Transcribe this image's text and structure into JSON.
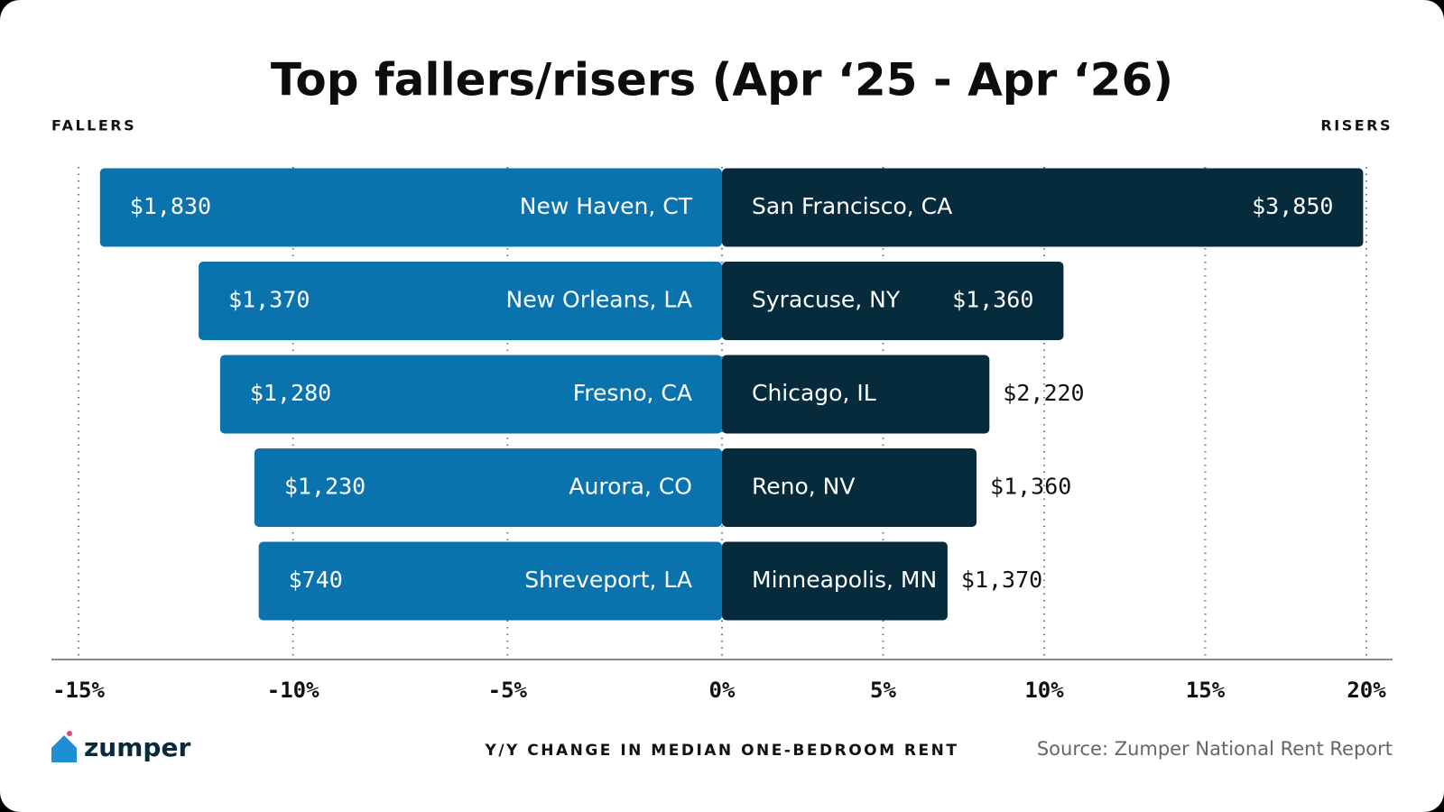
{
  "chart_data": {
    "type": "diverging-bar",
    "title": "Top fallers/risers (Apr ‘25 - Apr ‘26)",
    "x_label": "Y/Y CHANGE IN MEDIAN ONE-BEDROOM RENT",
    "source": "Source: Zumper National Rent Report",
    "logo": "zumper",
    "series": [
      {
        "name": "FALLERS",
        "color": "#0a73ae",
        "cities": [
          "New Haven, CT",
          "New Orleans, LA",
          "Fresno, CA",
          "Aurora, CO",
          "Shreveport, LA"
        ],
        "rents": [
          "$1,830",
          "$1,370",
          "$1,280",
          "$1,230",
          "$740"
        ],
        "values": [
          -14.5,
          -12.2,
          -11.7,
          -10.9,
          -10.8
        ]
      },
      {
        "name": "RISERS",
        "color": "#062b3c",
        "cities": [
          "San Francisco, CA",
          "Syracuse, NY",
          "Chicago, IL",
          "Reno, NV",
          "Minneapolis, MN"
        ],
        "rents": [
          "$3,850",
          "$1,360",
          "$2,220",
          "$1,360",
          "$1,370"
        ],
        "values": [
          19.9,
          10.6,
          8.3,
          7.9,
          7.0
        ]
      }
    ],
    "xlim": [
      -15,
      20
    ],
    "xticks": [
      {
        "value": -15,
        "label": "-15%"
      },
      {
        "value": -10,
        "label": "-10%"
      },
      {
        "value": -5,
        "label": "-5%"
      },
      {
        "value": 0,
        "label": "0%"
      },
      {
        "value": 5,
        "label": "5%"
      },
      {
        "value": 10,
        "label": "10%"
      },
      {
        "value": 15,
        "label": "15%"
      },
      {
        "value": 20,
        "label": "20%"
      }
    ],
    "grid": true
  }
}
